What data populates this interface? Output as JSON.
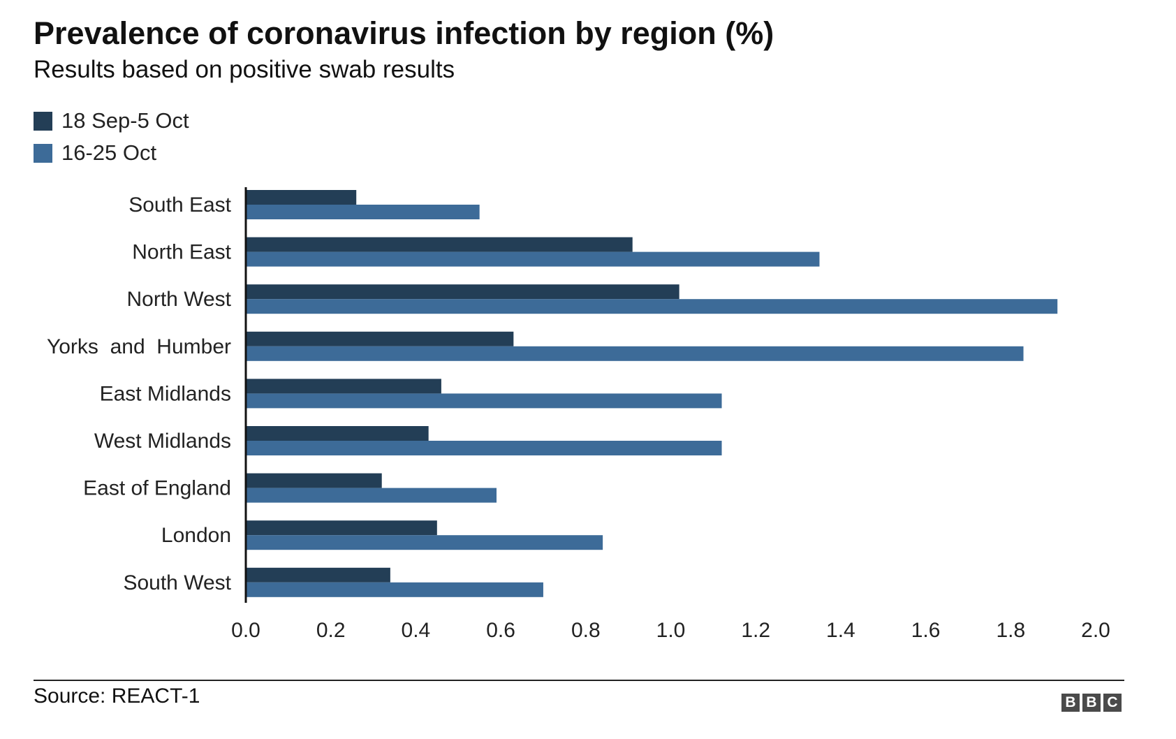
{
  "chart_data": {
    "type": "bar",
    "orientation": "horizontal",
    "title": "Prevalence of coronavirus infection by region (%)",
    "subtitle": "Results based on positive swab results",
    "categories": [
      "South East",
      "North East",
      "North West",
      "Yorks  and  Humber",
      "East Midlands",
      "West Midlands",
      "East of England",
      "London",
      "South West"
    ],
    "series": [
      {
        "name": "18 Sep-5 Oct",
        "color": "#233e56",
        "values": [
          0.26,
          0.91,
          1.02,
          0.63,
          0.46,
          0.43,
          0.32,
          0.45,
          0.34
        ]
      },
      {
        "name": "16-25 Oct",
        "color": "#3d6b98",
        "values": [
          0.55,
          1.35,
          1.91,
          1.83,
          1.12,
          1.12,
          0.59,
          0.84,
          0.7
        ]
      }
    ],
    "xlim": [
      0,
      2.0
    ],
    "x_ticks": [
      "0.0",
      "0.2",
      "0.4",
      "0.6",
      "0.8",
      "1.0",
      "1.2",
      "1.4",
      "1.6",
      "1.8",
      "2.0"
    ],
    "x_tick_values": [
      0,
      0.2,
      0.4,
      0.6,
      0.8,
      1.0,
      1.2,
      1.4,
      1.6,
      1.8,
      2.0
    ],
    "grid": false,
    "legend_position": "top-left"
  },
  "footer": {
    "source": "Source: REACT-1",
    "logo_letters": [
      "B",
      "B",
      "C"
    ]
  }
}
